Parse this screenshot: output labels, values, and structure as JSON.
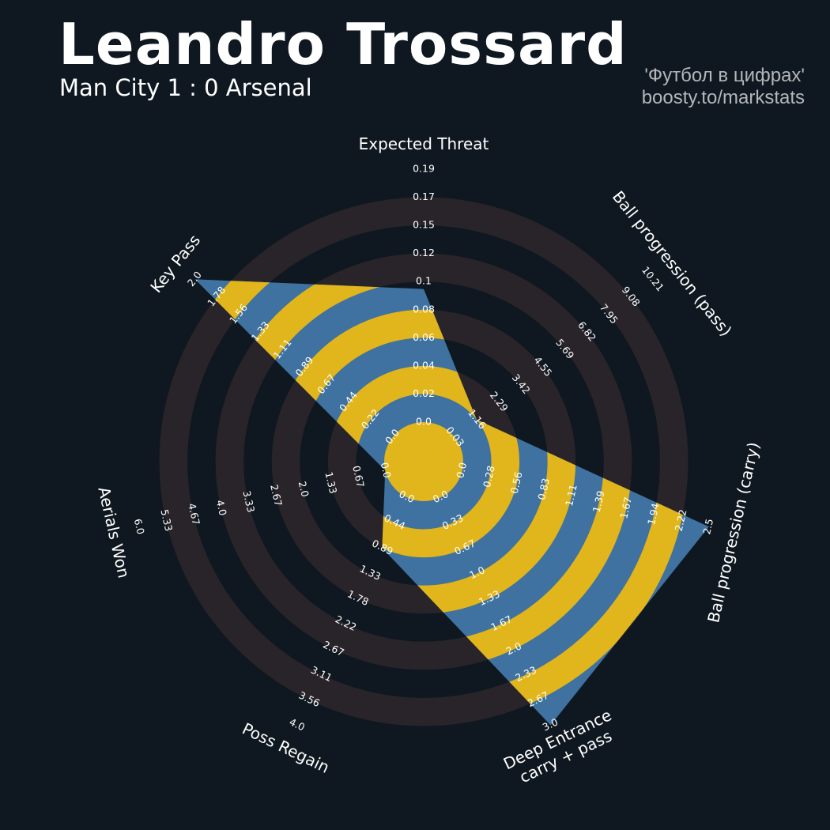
{
  "header": {
    "title": "Leandro Trossard",
    "subtitle": "Man City 1 : 0 Arsenal",
    "credit_line1": "'Футбол в цифрах'",
    "credit_line2": "boosty.to/markstats"
  },
  "colors": {
    "background": "#0f1820",
    "band": "#29242a",
    "fill_primary": "#3f72a0",
    "fill_secondary": "#e1b51c",
    "text": "#ffffff"
  },
  "chart_data": {
    "type": "radar",
    "title": "Leandro Trossard",
    "subtitle": "Man City 1 : 0 Arsenal",
    "grid": false,
    "params": [
      {
        "name": "Expected Threat",
        "label_lines": [
          "Expected Threat"
        ],
        "value": 0.1,
        "min": 0.0,
        "max": 0.19,
        "ticks": [
          "0.0",
          "0.02",
          "0.04",
          "0.06",
          "0.08",
          "0.1",
          "0.12",
          "0.15",
          "0.17",
          "0.19"
        ]
      },
      {
        "name": "Ball progression (pass)",
        "label_lines": [
          "Ball progression (pass)"
        ],
        "value": 1.16,
        "min": 0.03,
        "max": 10.21,
        "ticks": [
          "0.03",
          "1.16",
          "2.29",
          "3.42",
          "4.55",
          "5.69",
          "6.82",
          "7.95",
          "9.08",
          "10.21"
        ]
      },
      {
        "name": "Ball progression (carry)",
        "label_lines": [
          "Ball progression (carry)"
        ],
        "value": 2.5,
        "min": 0.0,
        "max": 2.5,
        "ticks": [
          "0.0",
          "0.28",
          "0.56",
          "0.83",
          "1.11",
          "1.39",
          "1.67",
          "1.94",
          "2.22",
          "2.5"
        ]
      },
      {
        "name": "Deep Entrance carry + pass",
        "label_lines": [
          "Deep Entrance",
          "carry + pass"
        ],
        "value": 3.0,
        "min": 0.0,
        "max": 3.0,
        "ticks": [
          "0.0",
          "0.33",
          "0.67",
          "1.0",
          "1.33",
          "1.67",
          "2.0",
          "2.33",
          "2.67",
          "3.0"
        ]
      },
      {
        "name": "Poss Regain",
        "label_lines": [
          "Poss Regain"
        ],
        "value": 0.89,
        "min": 0.0,
        "max": 4.0,
        "ticks": [
          "0.0",
          "0.44",
          "0.89",
          "1.33",
          "1.78",
          "2.22",
          "2.67",
          "3.11",
          "3.56",
          "4.0"
        ]
      },
      {
        "name": "Aerials Won",
        "label_lines": [
          "Aerials Won"
        ],
        "value": 0.0,
        "min": 0.0,
        "max": 6.0,
        "ticks": [
          "0.0",
          "0.67",
          "1.33",
          "2.0",
          "2.67",
          "3.33",
          "4.0",
          "4.67",
          "5.33",
          "6.0"
        ]
      },
      {
        "name": "Key Pass",
        "label_lines": [
          "Key Pass"
        ],
        "value": 2.0,
        "min": 0.0,
        "max": 2.0,
        "ticks": [
          "0.0",
          "0.22",
          "0.44",
          "0.67",
          "0.89",
          "1.11",
          "1.33",
          "1.56",
          "1.78",
          "2.0"
        ]
      }
    ]
  }
}
